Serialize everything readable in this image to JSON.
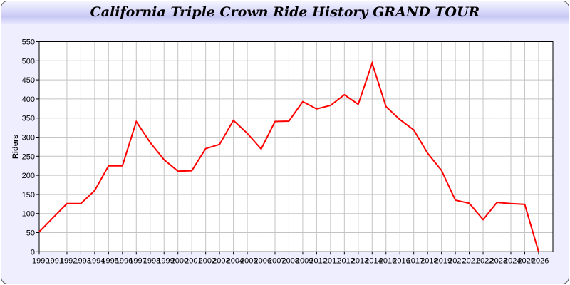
{
  "title": "California Triple Crown Ride History GRAND TOUR",
  "chart_data": {
    "type": "line",
    "title": "California Triple Crown Ride History GRAND TOUR",
    "xlabel": "",
    "ylabel": "Riders",
    "ylim": [
      0,
      550
    ],
    "yticks": [
      0,
      50,
      100,
      150,
      200,
      250,
      300,
      350,
      400,
      450,
      500,
      550
    ],
    "xlim": [
      1990,
      2027
    ],
    "grid": true,
    "line_color": "#ff0000",
    "x": [
      1990,
      1991,
      1992,
      1993,
      1994,
      1995,
      1996,
      1997,
      1998,
      1999,
      2000,
      2001,
      2002,
      2003,
      2004,
      2005,
      2006,
      2007,
      2008,
      2009,
      2010,
      2011,
      2012,
      2013,
      2014,
      2015,
      2016,
      2017,
      2018,
      2019,
      2020,
      2021,
      2022,
      2023,
      2024,
      2025,
      2026
    ],
    "series": [
      {
        "values": [
          52,
          89,
          126,
          126,
          160,
          225,
          225,
          341,
          286,
          241,
          211,
          212,
          270,
          281,
          344,
          310,
          269,
          341,
          342,
          393,
          374,
          383,
          411,
          386,
          494,
          380,
          346,
          319,
          258,
          213,
          135,
          127,
          84,
          129,
          126,
          124,
          0
        ]
      }
    ]
  }
}
